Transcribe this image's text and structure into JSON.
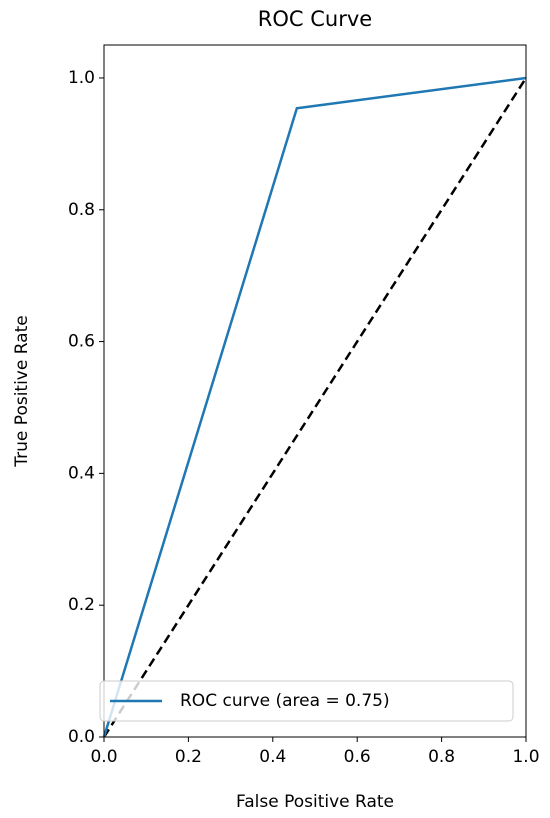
{
  "chart_data": {
    "type": "line",
    "title": "ROC Curve",
    "x_label": "False Positive Rate",
    "y_label": "True Positive Rate",
    "series": [
      {
        "name": "ROC curve (area = 0.75)",
        "color": "#1f77b4",
        "x": [
          0,
          0.457,
          1
        ],
        "values": [
          0,
          0.954,
          1
        ]
      }
    ],
    "diagonal": {
      "color": "#000000",
      "x": [
        0,
        1
      ],
      "values": [
        0,
        1
      ]
    },
    "xlim": [
      0,
      1
    ],
    "ylim": [
      0,
      1.05
    ],
    "xticks": [
      {
        "value": 0,
        "label": "0.0"
      },
      0.2,
      0.4,
      0.6,
      0.8,
      {
        "value": 1,
        "label": "1.0"
      }
    ],
    "yticks": [
      {
        "value": 0,
        "label": "0.0"
      },
      0.2,
      0.4,
      0.6,
      0.8,
      {
        "value": 1,
        "label": "1.0"
      }
    ],
    "legend": "lower left",
    "grid": false
  }
}
